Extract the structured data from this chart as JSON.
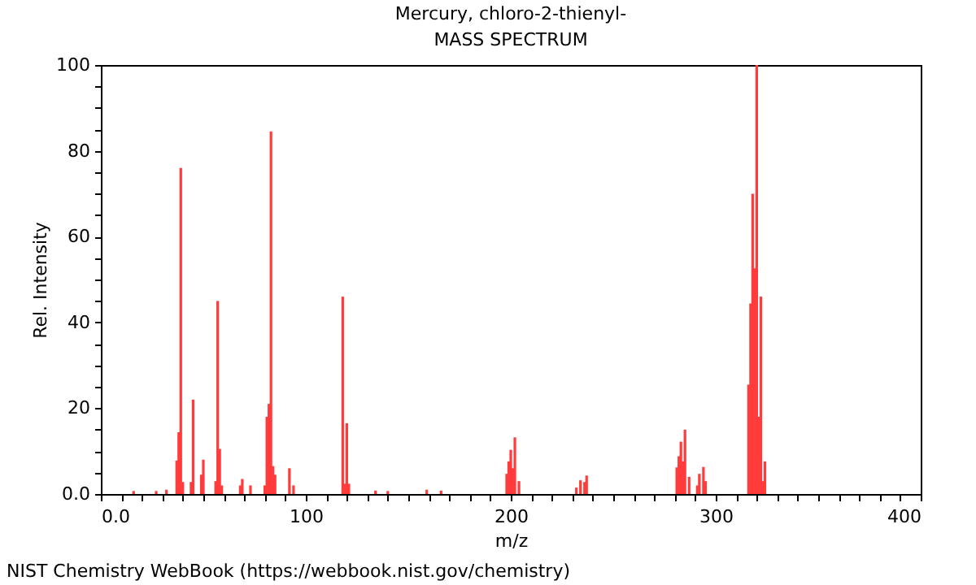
{
  "chart_data": {
    "type": "bar",
    "title": "Mercury, chloro-2-thienyl-",
    "subtitle": "MASS SPECTRUM",
    "xlabel": "m/z",
    "ylabel": "Rel. Intensity",
    "annotations": [
      "NIST Chemistry WebBook (https://webbook.nist.gov/chemistry)"
    ],
    "x": [
      16,
      27,
      32,
      37,
      38,
      39,
      40,
      44,
      45,
      49,
      50,
      56,
      57,
      58,
      59,
      68,
      69,
      73,
      80,
      81,
      82,
      83,
      84,
      85,
      92,
      94,
      118,
      119,
      120,
      121,
      134,
      140,
      159,
      166,
      198,
      199,
      200,
      201,
      202,
      204,
      232,
      234,
      236,
      237,
      281,
      282,
      283,
      284,
      285,
      287,
      291,
      292,
      294,
      295,
      316,
      317,
      318,
      319,
      320,
      321,
      322,
      323,
      324
    ],
    "values": [
      0.7,
      0.7,
      1,
      7.8,
      14.4,
      76,
      2.8,
      2.8,
      22,
      4.5,
      8,
      3,
      45,
      10.5,
      2,
      2,
      3.5,
      2,
      2,
      18,
      21,
      84.5,
      6.5,
      4.5,
      6,
      2,
      46,
      2.4,
      16.5,
      2.4,
      0.8,
      0.7,
      1,
      0.8,
      4.7,
      7.6,
      10.3,
      6,
      13.2,
      3,
      1.5,
      3.2,
      2.8,
      4.3,
      6.2,
      8.8,
      12.2,
      7.6,
      15,
      4,
      2,
      4.7,
      6.3,
      3,
      25.5,
      44.4,
      70,
      52.6,
      100,
      18,
      46,
      3,
      7.6
    ],
    "color": "#ff3b3b",
    "xlim": [
      0,
      400
    ],
    "xticks": [
      {
        "value": 0,
        "label": "0.0"
      },
      {
        "value": 10,
        "label": null
      },
      {
        "value": 20,
        "label": null
      },
      {
        "value": 30,
        "label": null
      },
      {
        "value": 40,
        "label": null
      },
      {
        "value": 50,
        "label": null
      },
      {
        "value": 60,
        "label": null
      },
      {
        "value": 70,
        "label": null
      },
      {
        "value": 80,
        "label": null
      },
      {
        "value": 90,
        "label": null
      },
      100,
      {
        "value": 110,
        "label": null
      },
      {
        "value": 120,
        "label": null
      },
      {
        "value": 130,
        "label": null
      },
      {
        "value": 140,
        "label": null
      },
      {
        "value": 150,
        "label": null
      },
      {
        "value": 160,
        "label": null
      },
      {
        "value": 170,
        "label": null
      },
      {
        "value": 180,
        "label": null
      },
      {
        "value": 190,
        "label": null
      },
      200,
      {
        "value": 210,
        "label": null
      },
      {
        "value": 220,
        "label": null
      },
      {
        "value": 230,
        "label": null
      },
      {
        "value": 240,
        "label": null
      },
      {
        "value": 250,
        "label": null
      },
      {
        "value": 260,
        "label": null
      },
      {
        "value": 270,
        "label": null
      },
      {
        "value": 280,
        "label": null
      },
      {
        "value": 290,
        "label": null
      },
      300,
      {
        "value": 310,
        "label": null
      },
      {
        "value": 320,
        "label": null
      },
      {
        "value": 330,
        "label": null
      },
      {
        "value": 340,
        "label": null
      },
      {
        "value": 350,
        "label": null
      },
      {
        "value": 360,
        "label": null
      },
      {
        "value": 370,
        "label": null
      },
      {
        "value": 380,
        "label": null
      },
      {
        "value": 390,
        "label": null
      },
      400
    ],
    "ylim": [
      0,
      100
    ],
    "yticks": [
      {
        "value": 0,
        "label": "0.0"
      },
      {
        "value": 5,
        "label": null
      },
      {
        "value": 10,
        "label": null
      },
      {
        "value": 15,
        "label": null
      },
      20,
      {
        "value": 25,
        "label": null
      },
      {
        "value": 30,
        "label": null
      },
      {
        "value": 35,
        "label": null
      },
      40,
      {
        "value": 45,
        "label": null
      },
      {
        "value": 50,
        "label": null
      },
      {
        "value": 55,
        "label": null
      },
      60,
      {
        "value": 65,
        "label": null
      },
      {
        "value": 70,
        "label": null
      },
      {
        "value": 75,
        "label": null
      },
      80,
      {
        "value": 85,
        "label": null
      },
      {
        "value": 90,
        "label": null
      },
      {
        "value": 95,
        "label": null
      },
      100
    ]
  }
}
